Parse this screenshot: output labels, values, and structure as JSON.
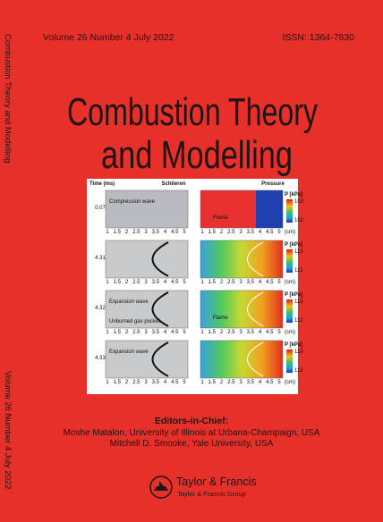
{
  "spine": {
    "title": "Combustion Theory and Modelling",
    "issue": "Volume 26  Number 4  July  2022"
  },
  "header": {
    "issue": "Volume 26  Number 4  July  2022",
    "issn": "ISSN: 1364-7830"
  },
  "title": {
    "line1": "Combustion Theory",
    "line2": "and Modelling"
  },
  "figure": {
    "time_label": "Time (ms)",
    "left_label": "Schlieren",
    "right_label": "Pressure",
    "colorbar_label": "P [kPa]",
    "axis_ticks": [
      "1",
      "1.5",
      "2",
      "2.5",
      "3",
      "3.5",
      "4",
      "4.5",
      "5"
    ],
    "axis_unit": "(cm)",
    "rows": [
      {
        "time": "0.07",
        "p_max": "103",
        "p_min": "102",
        "left_notes": [
          "Compression wave"
        ],
        "right_notes": [
          "Flame"
        ]
      },
      {
        "time": "4.31",
        "p_max": "113",
        "p_min": "112",
        "left_notes": [],
        "right_notes": []
      },
      {
        "time": "4.32",
        "p_max": "113",
        "p_min": "112",
        "left_notes": [
          "Expansion wave",
          "Unburned gas pocket"
        ],
        "right_notes": [
          "Flame"
        ]
      },
      {
        "time": "4.33",
        "p_max": "113",
        "p_min": "112",
        "left_notes": [
          "Expansion wave"
        ],
        "right_notes": []
      }
    ]
  },
  "editors": {
    "heading": "Editors-in-Chief:",
    "lines": [
      "Moshe Matalon, University of Illinois at Urbana-Champaign, USA",
      "Mitchell D. Smooke, Yale University, USA"
    ]
  },
  "publisher": {
    "name": "Taylor & Francis",
    "group": "Taylor & Francis Group"
  }
}
